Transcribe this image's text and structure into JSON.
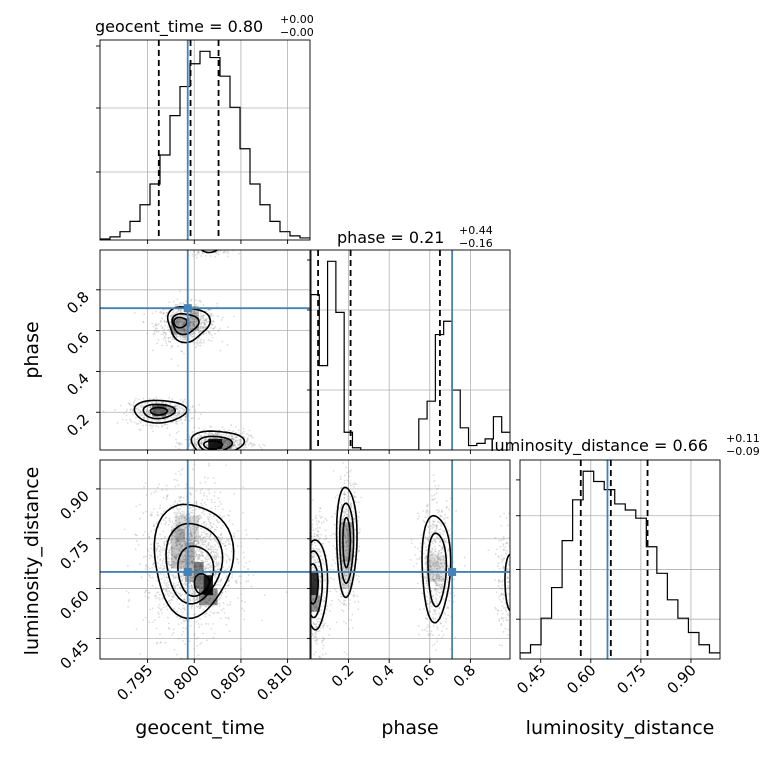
{
  "chart_data": {
    "type": "corner",
    "truth_color": "#4682b4",
    "grid": true,
    "parameters": [
      "geocent_time",
      "phase",
      "luminosity_distance"
    ],
    "axis_labels": {
      "x": [
        "geocent_time",
        "phase",
        "luminosity_distance"
      ],
      "y": [
        "phase",
        "luminosity_distance"
      ]
    },
    "titles": [
      {
        "prefix": "geocent_time = ",
        "value": "0.80",
        "plus": "+0.00",
        "minus": "−0.00"
      },
      {
        "prefix": "phase = ",
        "value": "0.21",
        "plus": "+0.44",
        "minus": "−0.16"
      },
      {
        "prefix": "luminosity_distance = ",
        "value": "0.66",
        "plus": "+0.11",
        "minus": "−0.09"
      }
    ],
    "ranges": {
      "geocent_time": [
        0.7899,
        0.8124
      ],
      "phase": [
        0.015,
        0.995
      ],
      "luminosity_distance": [
        0.388,
        0.987
      ]
    },
    "ticks": {
      "geocent_time": {
        "values": [
          0.795,
          0.8,
          0.805,
          0.81
        ],
        "labels": [
          "0.795",
          "0.800",
          "0.805",
          "0.810"
        ]
      },
      "phase_x": {
        "values": [
          0.2,
          0.4,
          0.6,
          0.8
        ],
        "labels": [
          "0.2",
          "0.4",
          "0.6",
          "0.8"
        ]
      },
      "phase_y": {
        "values": [
          0.2,
          0.4,
          0.6,
          0.8
        ],
        "labels": [
          "0.2",
          "0.4",
          "0.6",
          "0.8"
        ]
      },
      "luminosity_distance": {
        "values": [
          0.45,
          0.6,
          0.75,
          0.9
        ],
        "labels": [
          "0.45",
          "0.60",
          "0.75",
          "0.90"
        ]
      }
    },
    "truths": {
      "geocent_time": 0.7993,
      "phase": 0.71,
      "luminosity_distance": 0.65
    },
    "quantiles": {
      "geocent_time": [
        0.7962,
        0.7996,
        0.8026
      ],
      "phase": [
        0.05,
        0.21,
        0.65
      ],
      "luminosity_distance": [
        0.57,
        0.66,
        0.77
      ]
    },
    "hist_geocent_time": [
      0.5,
      1.5,
      4,
      9,
      17,
      27,
      41,
      60,
      74,
      85,
      91,
      88,
      79,
      64,
      44,
      27,
      17,
      9,
      4,
      2,
      1
    ],
    "hist_phase": [
      70,
      38,
      85,
      62,
      8,
      1,
      0,
      0,
      0,
      0,
      0,
      0,
      0,
      14,
      22,
      52,
      58,
      27,
      10,
      2,
      3,
      5,
      15,
      8
    ],
    "hist_luminosity_distance": [
      3,
      7,
      20,
      35,
      58,
      78,
      92,
      87,
      83,
      76,
      73,
      69,
      55,
      42,
      29,
      20,
      13,
      7,
      3
    ]
  }
}
